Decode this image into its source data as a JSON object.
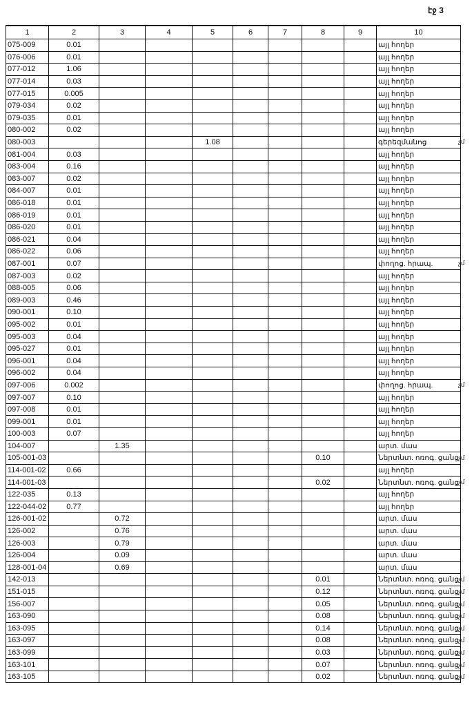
{
  "page_label": "էջ 3",
  "header": [
    "1",
    "2",
    "3",
    "4",
    "5",
    "6",
    "7",
    "8",
    "9",
    "10"
  ],
  "rows": [
    {
      "c": [
        "075-009",
        "0.01",
        "",
        "",
        "",
        "",
        "",
        "",
        "",
        "այլ հողեր"
      ],
      "n": ""
    },
    {
      "c": [
        "076-006",
        "0.01",
        "",
        "",
        "",
        "",
        "",
        "",
        "",
        "այլ հողեր"
      ],
      "n": ""
    },
    {
      "c": [
        "077-012",
        "1.06",
        "",
        "",
        "",
        "",
        "",
        "",
        "",
        "այլ հողեր"
      ],
      "n": ""
    },
    {
      "c": [
        "077-014",
        "0.03",
        "",
        "",
        "",
        "",
        "",
        "",
        "",
        "այլ հողեր"
      ],
      "n": ""
    },
    {
      "c": [
        "077-015",
        "0.005",
        "",
        "",
        "",
        "",
        "",
        "",
        "",
        "այլ հողեր"
      ],
      "n": ""
    },
    {
      "c": [
        "079-034",
        "0.02",
        "",
        "",
        "",
        "",
        "",
        "",
        "",
        "այլ հողեր"
      ],
      "n": ""
    },
    {
      "c": [
        "079-035",
        "0.01",
        "",
        "",
        "",
        "",
        "",
        "",
        "",
        "այլ հողեր"
      ],
      "n": ""
    },
    {
      "c": [
        "080-002",
        "0.02",
        "",
        "",
        "",
        "",
        "",
        "",
        "",
        "այլ հողեր"
      ],
      "n": ""
    },
    {
      "c": [
        "080-003",
        "",
        "",
        "",
        "1.08",
        "",
        "",
        "",
        "",
        "գերեզմանոց"
      ],
      "n": "չմ"
    },
    {
      "c": [
        "081-004",
        "0.03",
        "",
        "",
        "",
        "",
        "",
        "",
        "",
        "այլ հողեր"
      ],
      "n": ""
    },
    {
      "c": [
        "083-004",
        "0.16",
        "",
        "",
        "",
        "",
        "",
        "",
        "",
        "այլ հողեր"
      ],
      "n": ""
    },
    {
      "c": [
        "083-007",
        "0.02",
        "",
        "",
        "",
        "",
        "",
        "",
        "",
        "այլ հողեր"
      ],
      "n": ""
    },
    {
      "c": [
        "084-007",
        "0.01",
        "",
        "",
        "",
        "",
        "",
        "",
        "",
        "այլ հողեր"
      ],
      "n": ""
    },
    {
      "c": [
        "086-018",
        "0.01",
        "",
        "",
        "",
        "",
        "",
        "",
        "",
        "այլ հողեր"
      ],
      "n": ""
    },
    {
      "c": [
        "086-019",
        "0.01",
        "",
        "",
        "",
        "",
        "",
        "",
        "",
        "այլ հողեր"
      ],
      "n": ""
    },
    {
      "c": [
        "086-020",
        "0.01",
        "",
        "",
        "",
        "",
        "",
        "",
        "",
        "այլ հողեր"
      ],
      "n": ""
    },
    {
      "c": [
        "086-021",
        "0.04",
        "",
        "",
        "",
        "",
        "",
        "",
        "",
        "այլ հողեր"
      ],
      "n": ""
    },
    {
      "c": [
        "086-022",
        "0.06",
        "",
        "",
        "",
        "",
        "",
        "",
        "",
        "այլ հողեր"
      ],
      "n": ""
    },
    {
      "c": [
        "087-001",
        "0.07",
        "",
        "",
        "",
        "",
        "",
        "",
        "",
        "փողոց. հրապ."
      ],
      "n": "չմ"
    },
    {
      "c": [
        "087-003",
        "0.02",
        "",
        "",
        "",
        "",
        "",
        "",
        "",
        "այլ հողեր"
      ],
      "n": ""
    },
    {
      "c": [
        "088-005",
        "0.06",
        "",
        "",
        "",
        "",
        "",
        "",
        "",
        "այլ հողեր"
      ],
      "n": ""
    },
    {
      "c": [
        "089-003",
        "0.46",
        "",
        "",
        "",
        "",
        "",
        "",
        "",
        "այլ հողեր"
      ],
      "n": ""
    },
    {
      "c": [
        "090-001",
        "0.10",
        "",
        "",
        "",
        "",
        "",
        "",
        "",
        "այլ հողեր"
      ],
      "n": ""
    },
    {
      "c": [
        "095-002",
        "0.01",
        "",
        "",
        "",
        "",
        "",
        "",
        "",
        "այլ հողեր"
      ],
      "n": ""
    },
    {
      "c": [
        "095-003",
        "0.04",
        "",
        "",
        "",
        "",
        "",
        "",
        "",
        "այլ հողեր"
      ],
      "n": ""
    },
    {
      "c": [
        "095-027",
        "0.01",
        "",
        "",
        "",
        "",
        "",
        "",
        "",
        "այլ հողեր"
      ],
      "n": ""
    },
    {
      "c": [
        "096-001",
        "0.04",
        "",
        "",
        "",
        "",
        "",
        "",
        "",
        "այլ հողեր"
      ],
      "n": ""
    },
    {
      "c": [
        "096-002",
        "0.04",
        "",
        "",
        "",
        "",
        "",
        "",
        "",
        "այլ հողեր"
      ],
      "n": ""
    },
    {
      "c": [
        "097-006",
        "0.002",
        "",
        "",
        "",
        "",
        "",
        "",
        "",
        "փողոց. հրապ."
      ],
      "n": "չմ"
    },
    {
      "c": [
        "097-007",
        "0.10",
        "",
        "",
        "",
        "",
        "",
        "",
        "",
        "այլ հողեր"
      ],
      "n": ""
    },
    {
      "c": [
        "097-008",
        "0.01",
        "",
        "",
        "",
        "",
        "",
        "",
        "",
        "այլ հողեր"
      ],
      "n": ""
    },
    {
      "c": [
        "099-001",
        "0.01",
        "",
        "",
        "",
        "",
        "",
        "",
        "",
        "այլ հողեր"
      ],
      "n": ""
    },
    {
      "c": [
        "100-003",
        "0.07",
        "",
        "",
        "",
        "",
        "",
        "",
        "",
        "այլ հողեր"
      ],
      "n": ""
    },
    {
      "c": [
        "104-007",
        "",
        "1.35",
        "",
        "",
        "",
        "",
        "",
        "",
        "արտ. մաս"
      ],
      "n": ""
    },
    {
      "c": [
        "105-001-03",
        "",
        "",
        "",
        "",
        "",
        "",
        "0.10",
        "",
        "Ներտնտ. ոռոգ. ցանց"
      ],
      "n": "չմ"
    },
    {
      "c": [
        "114-001-02",
        "0.66",
        "",
        "",
        "",
        "",
        "",
        "",
        "",
        "այլ հողեր"
      ],
      "n": ""
    },
    {
      "c": [
        "114-001-03",
        "",
        "",
        "",
        "",
        "",
        "",
        "0.02",
        "",
        "Ներտնտ. ոռոգ. ցանց"
      ],
      "n": "չմ"
    },
    {
      "c": [
        "122-035",
        "0.13",
        "",
        "",
        "",
        "",
        "",
        "",
        "",
        "այլ հողեր"
      ],
      "n": ""
    },
    {
      "c": [
        "122-044-02",
        "0.77",
        "",
        "",
        "",
        "",
        "",
        "",
        "",
        "այլ հողեր"
      ],
      "n": ""
    },
    {
      "c": [
        "126-001-02",
        "",
        "0.72",
        "",
        "",
        "",
        "",
        "",
        "",
        "արտ. մաս"
      ],
      "n": ""
    },
    {
      "c": [
        "126-002",
        "",
        "0.76",
        "",
        "",
        "",
        "",
        "",
        "",
        "արտ. մաս"
      ],
      "n": ""
    },
    {
      "c": [
        "126-003",
        "",
        "0.79",
        "",
        "",
        "",
        "",
        "",
        "",
        "արտ. մաս"
      ],
      "n": ""
    },
    {
      "c": [
        "126-004",
        "",
        "0.09",
        "",
        "",
        "",
        "",
        "",
        "",
        "արտ. մաս"
      ],
      "n": ""
    },
    {
      "c": [
        "128-001-04",
        "",
        "0.69",
        "",
        "",
        "",
        "",
        "",
        "",
        "արտ. մաս"
      ],
      "n": ""
    },
    {
      "c": [
        "142-013",
        "",
        "",
        "",
        "",
        "",
        "",
        "0.01",
        "",
        "Ներտնտ. ոռոգ. ցանց"
      ],
      "n": "չմ"
    },
    {
      "c": [
        "151-015",
        "",
        "",
        "",
        "",
        "",
        "",
        "0.12",
        "",
        "Ներտնտ. ոռոգ. ցանց"
      ],
      "n": "չմ"
    },
    {
      "c": [
        "156-007",
        "",
        "",
        "",
        "",
        "",
        "",
        "0.05",
        "",
        "Ներտնտ. ոռոգ. ցանց"
      ],
      "n": "չմ"
    },
    {
      "c": [
        "163-090",
        "",
        "",
        "",
        "",
        "",
        "",
        "0.08",
        "",
        "Ներտնտ. ոռոգ. ցանց"
      ],
      "n": "չմ"
    },
    {
      "c": [
        "163-095",
        "",
        "",
        "",
        "",
        "",
        "",
        "0.14",
        "",
        "Ներտնտ. ոռոգ. ցանց"
      ],
      "n": "չմ"
    },
    {
      "c": [
        "163-097",
        "",
        "",
        "",
        "",
        "",
        "",
        "0.08",
        "",
        "Ներտնտ. ոռոգ. ցանց"
      ],
      "n": "չմ"
    },
    {
      "c": [
        "163-099",
        "",
        "",
        "",
        "",
        "",
        "",
        "0.03",
        "",
        "Ներտնտ. ոռոգ. ցանց"
      ],
      "n": "չմ"
    },
    {
      "c": [
        "163-101",
        "",
        "",
        "",
        "",
        "",
        "",
        "0.07",
        "",
        "Ներտնտ. ոռոգ. ցանց"
      ],
      "n": "չմ"
    },
    {
      "c": [
        "163-105",
        "",
        "",
        "",
        "",
        "",
        "",
        "0.02",
        "",
        "Ներտնտ. ոռոգ. ցանց"
      ],
      "n": "չմ"
    }
  ]
}
